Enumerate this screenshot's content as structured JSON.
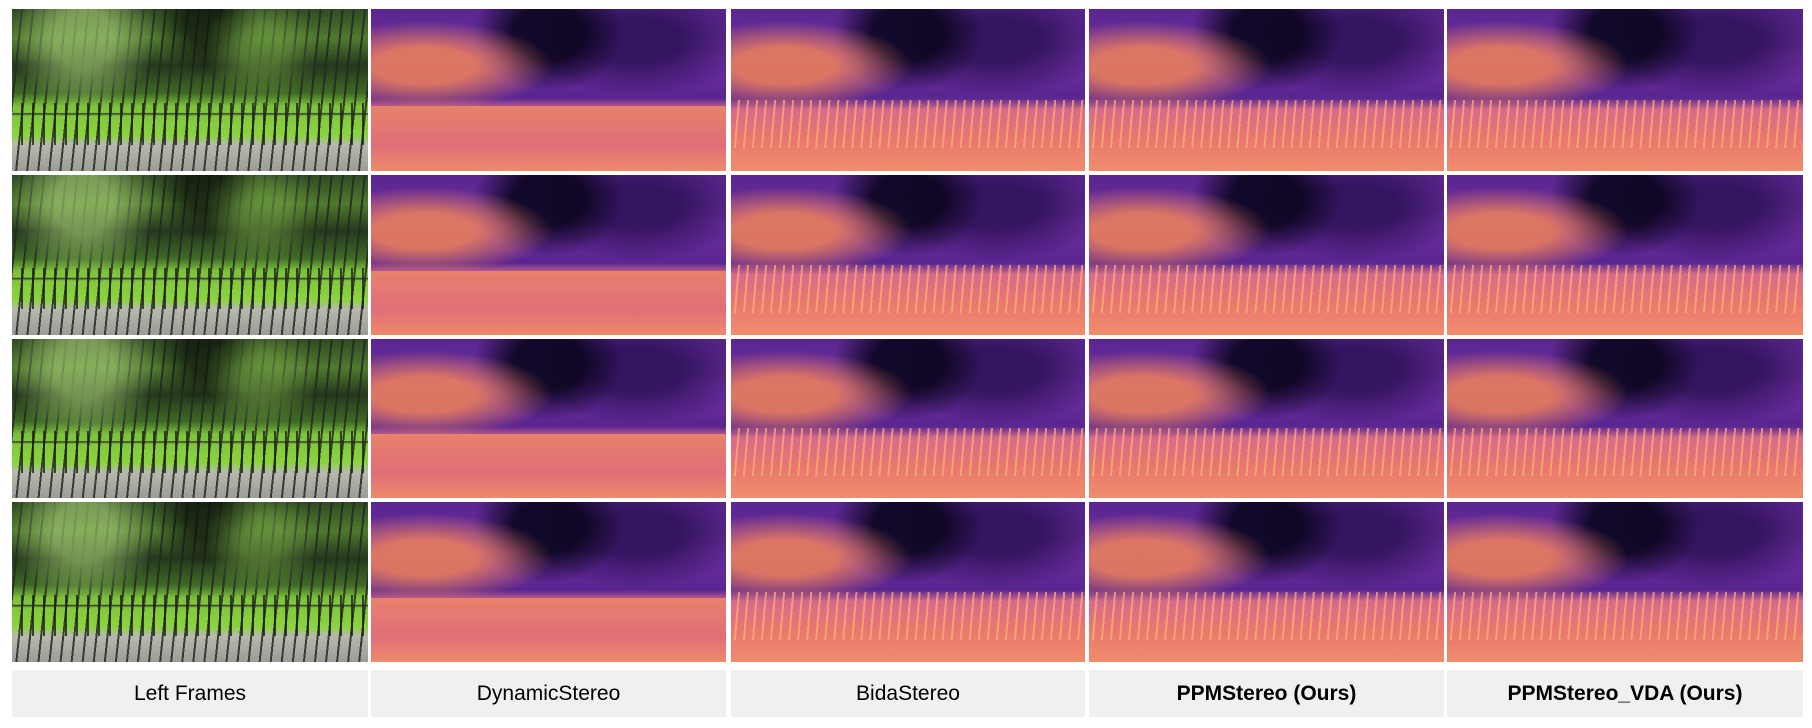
{
  "columns": [
    {
      "label": "Left Frames",
      "type": "rgb",
      "bold": false
    },
    {
      "label": "DynamicStereo",
      "type": "disparity",
      "bold": false
    },
    {
      "label": "BidaStereo",
      "type": "disparity",
      "bold": false
    },
    {
      "label": "PPMStereo (Ours)",
      "type": "disparity",
      "bold": true
    },
    {
      "label": "PPMStereo_VDA (Ours)",
      "type": "disparity",
      "bold": true
    }
  ],
  "rows": 4,
  "colormap": {
    "near": "#f08c6c",
    "mid": "#6e2fa2",
    "far": "#0a0520"
  }
}
